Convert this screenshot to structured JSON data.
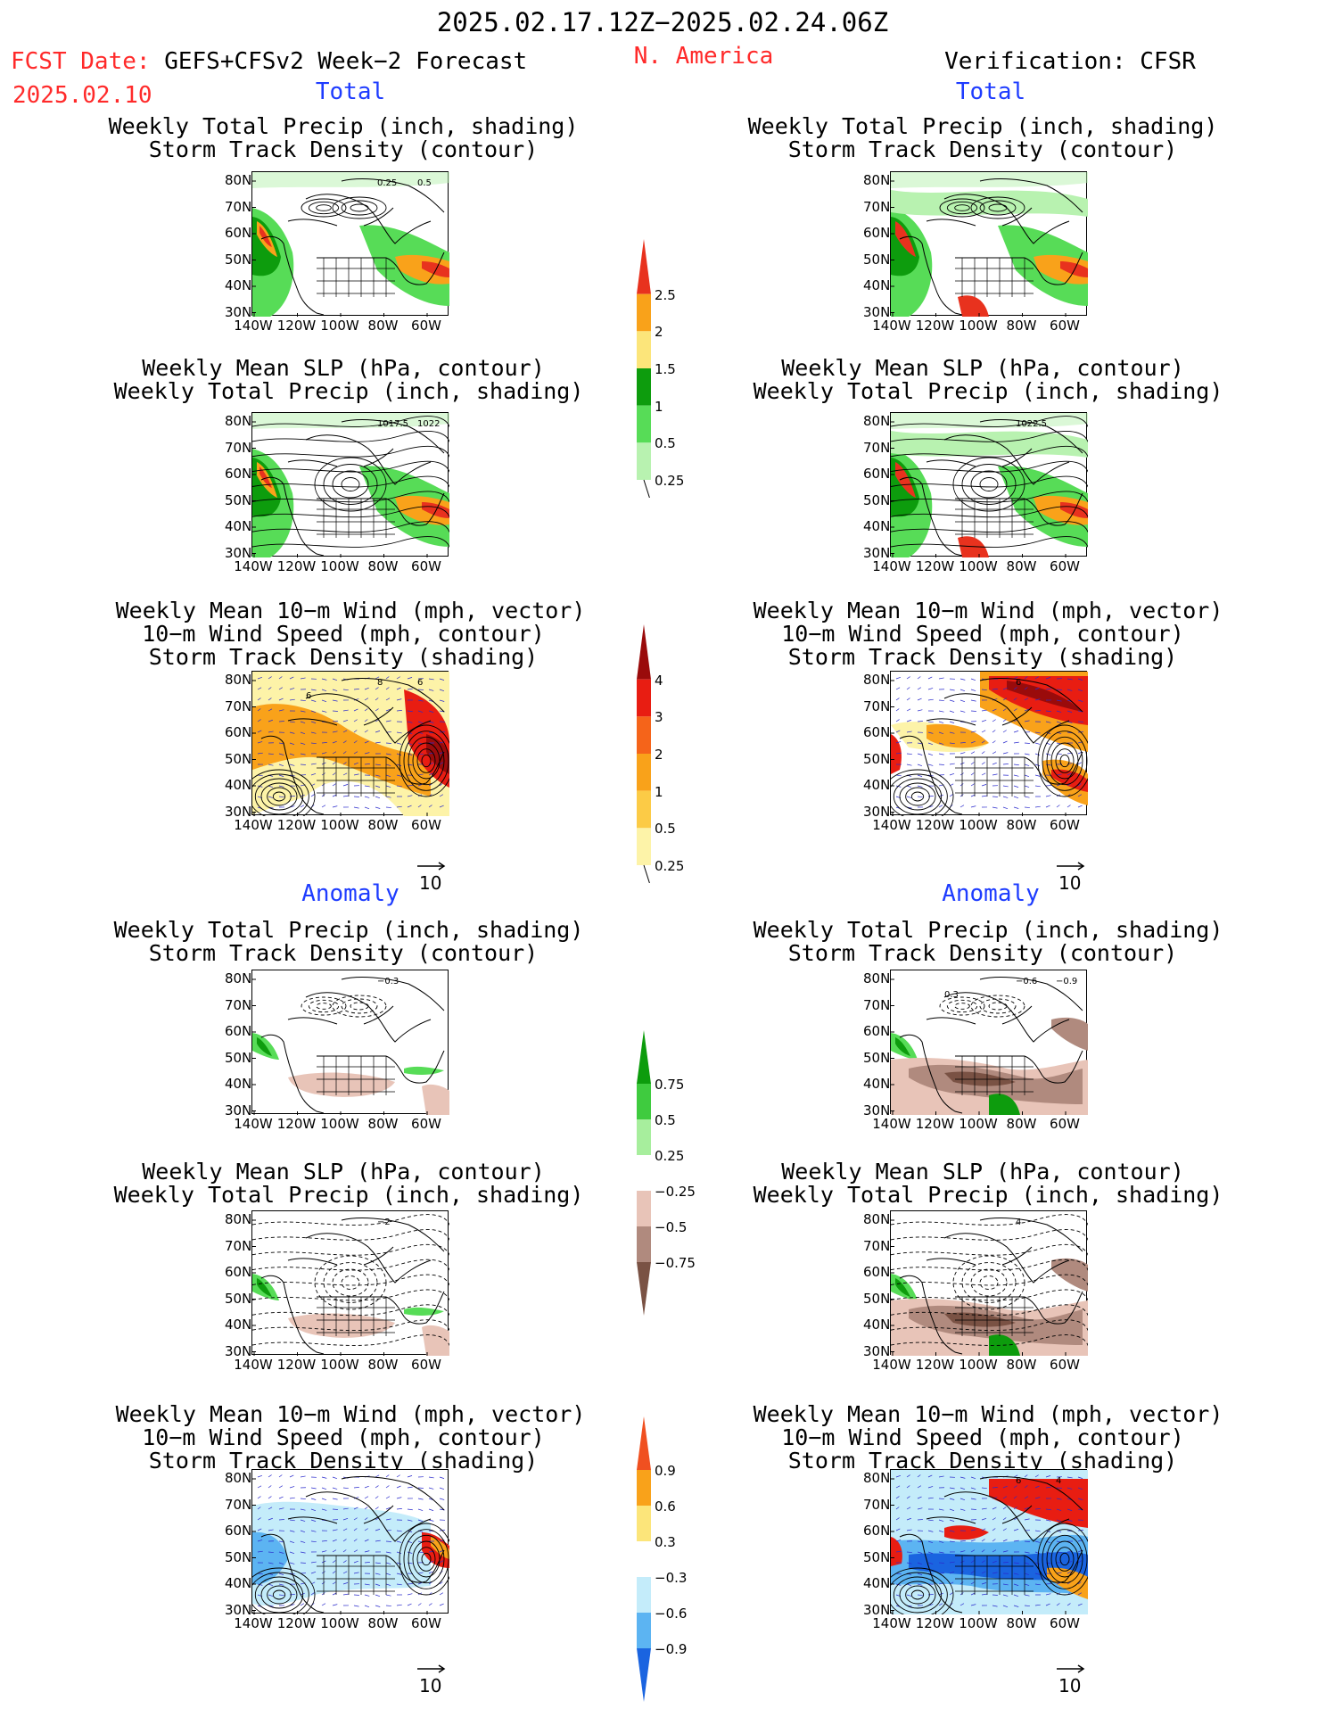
{
  "header": {
    "period": "2025.02.17.12Z−2025.02.24.06Z",
    "fcst_label": "FCST Date:",
    "fcst_model": "GEFS+CFSv2 Week−2 Forecast",
    "fcst_date": "2025.02.10",
    "region": "N. America",
    "verification": "Verification: CFSR"
  },
  "sections": {
    "total": "Total",
    "anomaly": "Anomaly"
  },
  "titles": {
    "precip_storm": [
      "Weekly Total Precip (inch, shading)",
      "Storm Track Density (contour)"
    ],
    "slp_precip": [
      "Weekly Mean SLP (hPa, contour)",
      "Weekly Total Precip (inch, shading)"
    ],
    "wind_storm": [
      "Weekly Mean 10−m Wind (mph, vector)",
      "10−m Wind Speed (mph, contour)",
      "Storm Track Density (shading)"
    ]
  },
  "axes": {
    "lat_ticks": [
      "80N",
      "70N",
      "60N",
      "50N",
      "40N",
      "30N"
    ],
    "lon_ticks": [
      "140W",
      "120W",
      "100W",
      "80W",
      "60W"
    ]
  },
  "vector_scale": "10",
  "map_annotations": {
    "fc_precip_storm": [
      "0.25",
      "0.5"
    ],
    "fc_slp": [
      "1017.5",
      "1022"
    ],
    "cfsr_slp": [
      "1022.5"
    ],
    "fc_wind": [
      "8",
      "6",
      "6"
    ],
    "cfsr_wind": [
      "6"
    ],
    "fc_anom_precip": [
      "−0.3"
    ],
    "cfsr_anom_precip": [
      "−0.6",
      "−0.9",
      "0.3"
    ],
    "fc_anom_slp": [
      "−2"
    ],
    "cfsr_anom_slp": [
      "4"
    ],
    "cfsr_anom_wind": [
      "6",
      "4"
    ]
  },
  "colorbars": {
    "precip_total": {
      "labels": [
        "2.5",
        "2",
        "1.5",
        "1",
        "0.5",
        "0.25"
      ],
      "colors": [
        "#e8321e",
        "#f9a21a",
        "#fce57a",
        "#0d9c0d",
        "#57dc57",
        "#b8f2b0"
      ]
    },
    "storm_total": {
      "labels": [
        "4",
        "3",
        "2",
        "1",
        "0.5",
        "0.25"
      ],
      "colors": [
        "#9a0b0b",
        "#e81d12",
        "#f5641a",
        "#f9a21a",
        "#fccb46",
        "#fdf3a8"
      ]
    },
    "precip_anom": {
      "labels": [
        "0.75",
        "0.5",
        "0.25",
        "−0.25",
        "−0.5",
        "−0.75"
      ],
      "colors": [
        "#0d9c0d",
        "#3fcb3f",
        "#a7ee9d",
        "#ffffff",
        "#e8c4b8",
        "#b08a7e",
        "#7a5244"
      ]
    },
    "storm_anom": {
      "labels": [
        "0.9",
        "0.6",
        "0.3",
        "−0.3",
        "−0.6",
        "−0.9"
      ],
      "colors": [
        "#f05020",
        "#f9a21a",
        "#fce57a",
        "#ffffff",
        "#c4ecfa",
        "#5cb4f2",
        "#1a64e0"
      ]
    }
  },
  "map_colors": {
    "precip_light": "#b8f2b0",
    "precip_mid": "#57dc57",
    "precip_dark": "#0d9c0d",
    "precip_yellow": "#fce57a",
    "precip_orange": "#f9a21a",
    "precip_red": "#e8321e",
    "storm_yellow": "#fdf3a8",
    "storm_orange": "#f9a21a",
    "storm_red": "#e81d12",
    "storm_dark": "#9a0b0b",
    "brown_light": "#e8c4b8",
    "brown_mid": "#b08a7e",
    "brown_dark": "#7a5244",
    "blue_light": "#c4ecfa",
    "blue_mid": "#5cb4f2",
    "blue_dark": "#1a64e0",
    "vector": "#2a2acc"
  }
}
